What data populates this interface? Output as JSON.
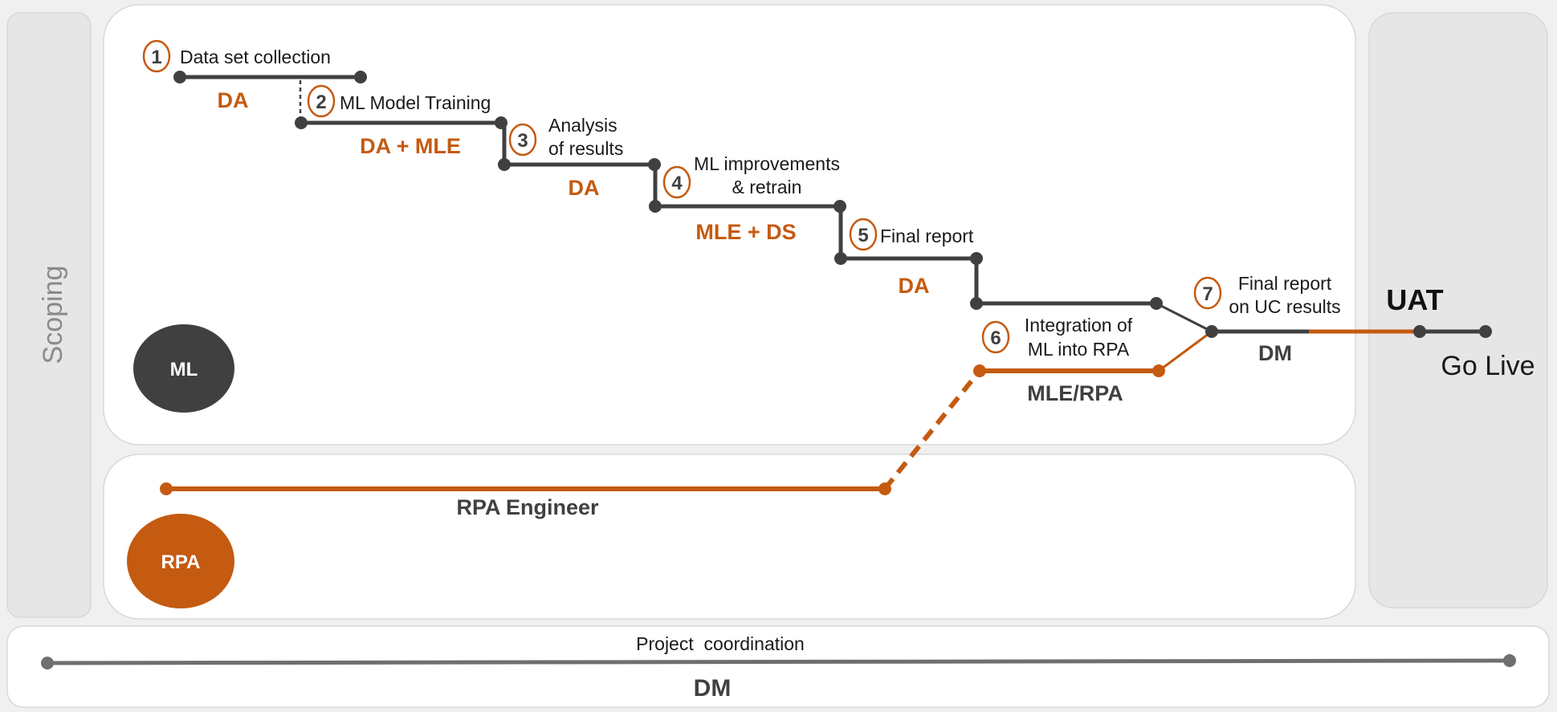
{
  "colors": {
    "background": "#f0f0f0",
    "panel": "#ffffff",
    "side_panel": "#e6e6e6",
    "dark": "#404040",
    "accent": "#c55a11",
    "coordination_line": "#6f6f6f",
    "muted_text": "#8a8a8a"
  },
  "scoping_label": "Scoping",
  "uat": {
    "title": "UAT",
    "go_live": "Go Live"
  },
  "ml_badge": "ML",
  "rpa_badge": "RPA",
  "steps": [
    {
      "number": "1",
      "lines": [
        "Data set collection"
      ],
      "role": "DA"
    },
    {
      "number": "2",
      "lines": [
        "ML Model Training"
      ],
      "role": "DA + MLE"
    },
    {
      "number": "3",
      "lines": [
        "Analysis",
        "of results"
      ],
      "role": "DA"
    },
    {
      "number": "4",
      "lines": [
        "ML improvements",
        "& retrain"
      ],
      "role": "MLE + DS"
    },
    {
      "number": "5",
      "lines": [
        "Final report"
      ],
      "role": "DA"
    },
    {
      "number": "6",
      "lines": [
        "Integration of",
        "ML into RPA"
      ],
      "role": "MLE/RPA"
    },
    {
      "number": "7",
      "lines": [
        "Final report",
        "on UC results"
      ],
      "role": "DM"
    }
  ],
  "rpa_engineer_label": "RPA Engineer",
  "coordination": {
    "title": "Project  coordination",
    "role": "DM"
  }
}
